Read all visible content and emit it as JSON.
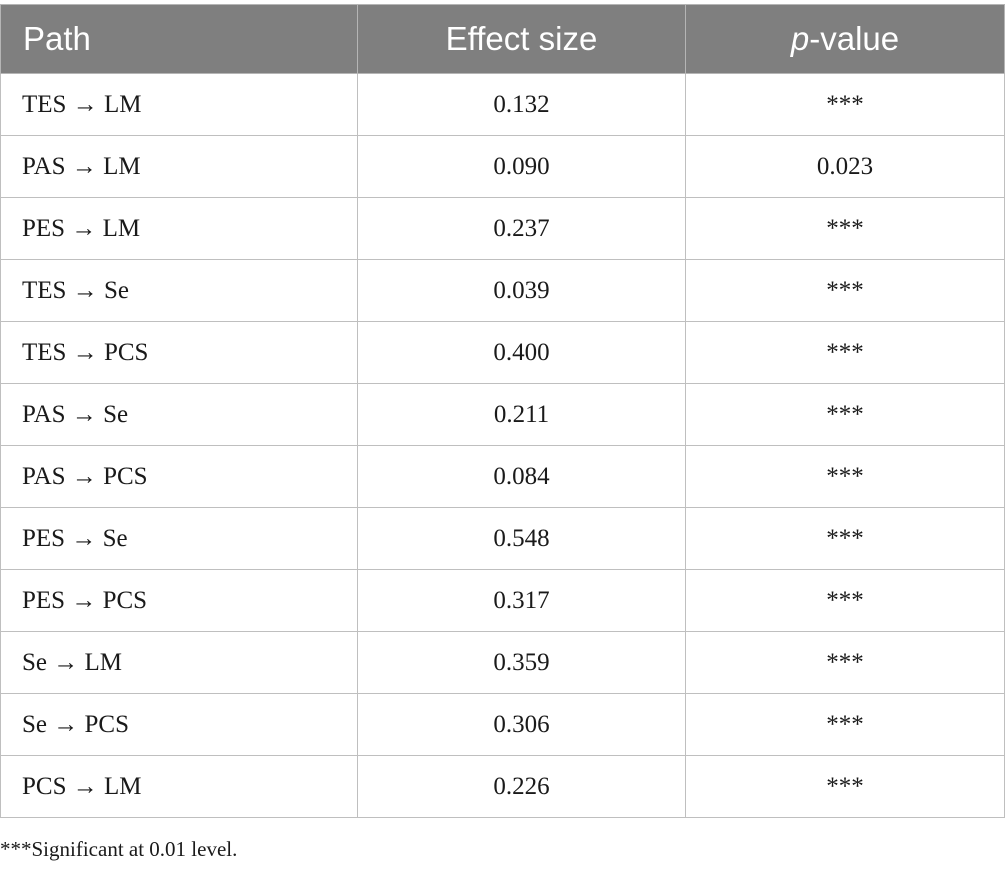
{
  "table": {
    "headers": {
      "path": "Path",
      "effect": "Effect size",
      "pval_italic": "p",
      "pval_rest": "-value"
    },
    "rows": [
      {
        "path": "TES → LM",
        "effect": "0.132",
        "pval": "***"
      },
      {
        "path": "PAS → LM",
        "effect": "0.090",
        "pval": "0.023"
      },
      {
        "path": "PES → LM",
        "effect": "0.237",
        "pval": "***"
      },
      {
        "path": "TES → Se",
        "effect": "0.039",
        "pval": "***"
      },
      {
        "path": "TES → PCS",
        "effect": "0.400",
        "pval": "***"
      },
      {
        "path": "PAS → Se",
        "effect": "0.211",
        "pval": "***"
      },
      {
        "path": "PAS → PCS",
        "effect": "0.084",
        "pval": "***"
      },
      {
        "path": "PES → Se",
        "effect": "0.548",
        "pval": "***"
      },
      {
        "path": "PES → PCS",
        "effect": "0.317",
        "pval": "***"
      },
      {
        "path": "Se → LM",
        "effect": "0.359",
        "pval": "***"
      },
      {
        "path": "Se → PCS",
        "effect": "0.306",
        "pval": "***"
      },
      {
        "path": "PCS → LM",
        "effect": "0.226",
        "pval": "***"
      }
    ]
  },
  "footnote": "***Significant at 0.01 level.",
  "colors": {
    "header_bg": "#7f7f7f",
    "header_text": "#ffffff",
    "grid": "#bfbfbf"
  }
}
